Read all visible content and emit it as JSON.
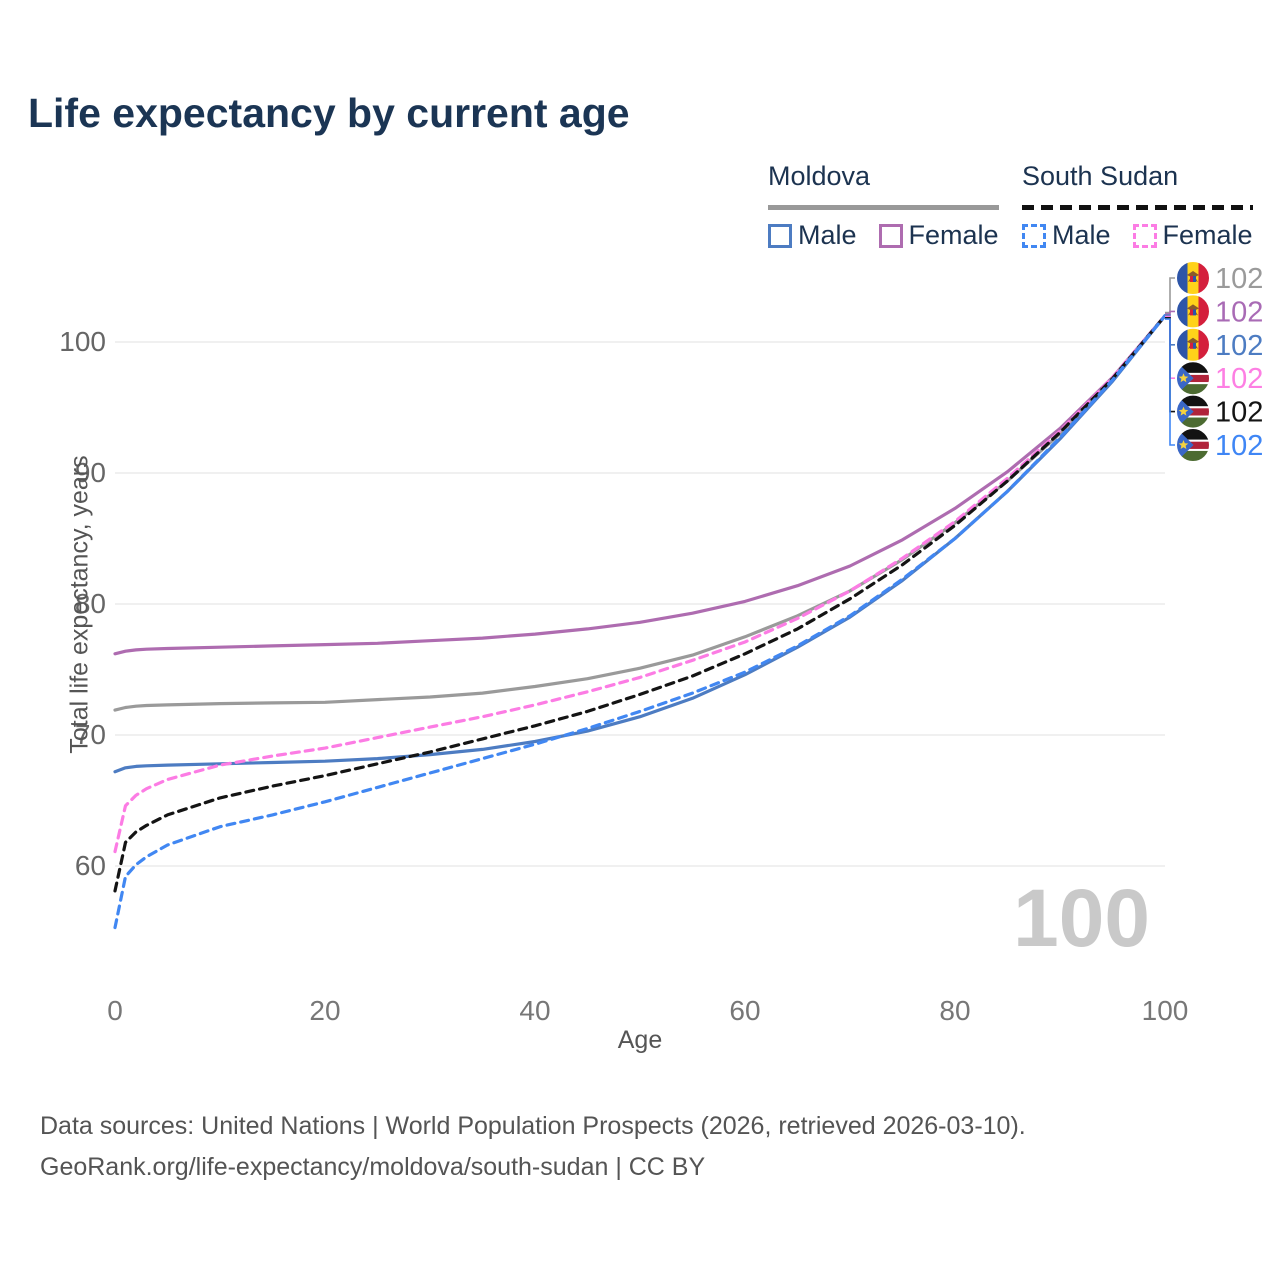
{
  "title": "Life expectancy by current age",
  "watermark": "100",
  "footer": {
    "line1": "Data sources: United Nations | World Population Prospects (2026, retrieved 2026-03-10).",
    "line2": "GeoRank.org/life-expectancy/moldova/south-sudan | CC BY"
  },
  "legend": {
    "groups": [
      {
        "key": "moldova",
        "title": "Moldova",
        "line_style": "solid",
        "items": [
          {
            "label": "Male",
            "color": "#4d7cc2",
            "dashed": false
          },
          {
            "label": "Female",
            "color": "#ae6cb0",
            "dashed": false
          }
        ]
      },
      {
        "key": "south-sudan",
        "title": "South Sudan",
        "line_style": "dashed",
        "items": [
          {
            "label": "Male",
            "color": "#4187f2",
            "dashed": true
          },
          {
            "label": "Female",
            "color": "#fc7ce4",
            "dashed": true
          }
        ]
      }
    ]
  },
  "chart_data": {
    "type": "line",
    "title": "Life expectancy by current age",
    "xlabel": "Age",
    "ylabel": "Total life expectancy, years",
    "xlim": [
      0,
      100
    ],
    "ylim": [
      55,
      104
    ],
    "x_ticks": [
      "0",
      "20",
      "40",
      "60",
      "80",
      "100"
    ],
    "y_ticks": [
      "60",
      "70",
      "80",
      "90",
      "100"
    ],
    "grid": "horizontal",
    "legend_position": "top-right",
    "x": [
      0,
      1,
      2,
      3,
      5,
      10,
      15,
      20,
      25,
      30,
      35,
      40,
      45,
      50,
      55,
      60,
      65,
      70,
      75,
      80,
      85,
      90,
      95,
      100
    ],
    "series": [
      {
        "name": "Moldova Female",
        "country": "Moldova",
        "sex": "female",
        "flag": "md",
        "color": "#ae6cb0",
        "dashed": false,
        "values": [
          76.2,
          76.4,
          76.5,
          76.55,
          76.6,
          76.7,
          76.8,
          76.9,
          77.0,
          77.2,
          77.4,
          77.7,
          78.1,
          78.6,
          79.3,
          80.2,
          81.4,
          82.9,
          84.9,
          87.3,
          90.1,
          93.4,
          97.3,
          102
        ]
      },
      {
        "name": "Moldova Both sexes",
        "country": "Moldova",
        "sex": "both",
        "flag": "md",
        "color": "#9a9a9a",
        "dashed": false,
        "values": [
          71.9,
          72.1,
          72.2,
          72.25,
          72.3,
          72.4,
          72.45,
          72.5,
          72.7,
          72.9,
          73.2,
          73.7,
          74.3,
          75.1,
          76.1,
          77.5,
          79.1,
          81.0,
          83.4,
          86.2,
          89.4,
          93.0,
          97.2,
          102
        ]
      },
      {
        "name": "Moldova Male",
        "country": "Moldova",
        "sex": "male",
        "flag": "md",
        "color": "#4d7cc2",
        "dashed": false,
        "values": [
          67.2,
          67.5,
          67.6,
          67.65,
          67.7,
          67.8,
          67.9,
          68.0,
          68.2,
          68.5,
          68.9,
          69.5,
          70.3,
          71.4,
          72.8,
          74.6,
          76.7,
          79.0,
          81.8,
          85.0,
          88.6,
          92.6,
          97.0,
          102
        ]
      },
      {
        "name": "South Sudan Female",
        "country": "South Sudan",
        "sex": "female",
        "flag": "ss",
        "color": "#fc7ce4",
        "dashed": true,
        "values": [
          61.1,
          64.6,
          65.4,
          65.9,
          66.6,
          67.7,
          68.4,
          69.0,
          69.8,
          70.6,
          71.4,
          72.3,
          73.3,
          74.4,
          75.7,
          77.1,
          78.9,
          81.0,
          83.5,
          86.3,
          89.6,
          93.2,
          97.3,
          102
        ]
      },
      {
        "name": "South Sudan Both sexes",
        "country": "South Sudan",
        "sex": "both",
        "flag": "ss",
        "color": "#141414",
        "dashed": true,
        "values": [
          58.1,
          61.8,
          62.6,
          63.1,
          63.9,
          65.2,
          66.1,
          66.9,
          67.8,
          68.7,
          69.7,
          70.7,
          71.8,
          73.1,
          74.5,
          76.2,
          78.1,
          80.4,
          83.0,
          86.0,
          89.4,
          93.1,
          97.2,
          102
        ]
      },
      {
        "name": "South Sudan Male",
        "country": "South Sudan",
        "sex": "male",
        "flag": "ss",
        "color": "#4187f2",
        "dashed": true,
        "values": [
          55.3,
          59.2,
          60.1,
          60.7,
          61.6,
          63.0,
          63.9,
          64.9,
          66.0,
          67.1,
          68.2,
          69.3,
          70.5,
          71.8,
          73.2,
          74.8,
          76.8,
          79.1,
          81.9,
          85.0,
          88.6,
          92.7,
          97.1,
          102
        ]
      }
    ],
    "right_labels": [
      {
        "value": "102",
        "flag": "md",
        "color": "#9a9a9a"
      },
      {
        "value": "102",
        "flag": "md",
        "color": "#a96bb5"
      },
      {
        "value": "102",
        "flag": "md",
        "color": "#4d7cc2"
      },
      {
        "value": "102",
        "flag": "ss",
        "color": "#fd7fe3"
      },
      {
        "value": "102",
        "flag": "ss",
        "color": "#141414"
      },
      {
        "value": "102",
        "flag": "ss",
        "color": "#3f86f5"
      }
    ]
  }
}
